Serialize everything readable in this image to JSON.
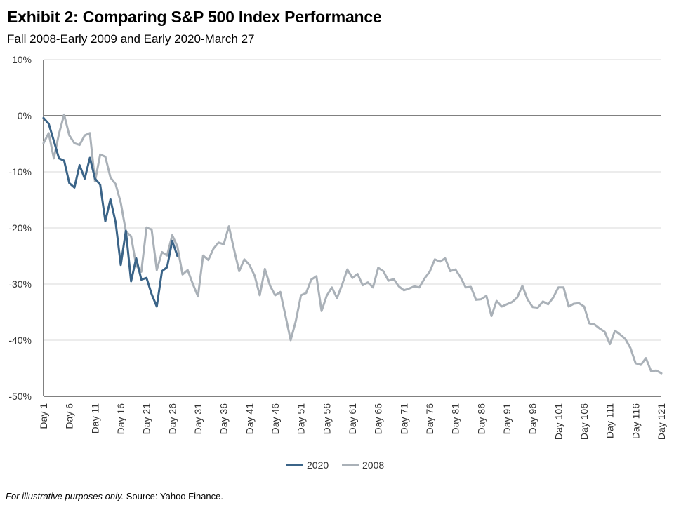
{
  "header": {
    "title": "Exhibit 2: Comparing S&P 500 Index Performance",
    "subtitle": "Fall 2008-Early 2009 and Early 2020-March 27"
  },
  "footnote": {
    "italic": "For illustrative purposes only.",
    "source": " Source: Yahoo Finance."
  },
  "colors": {
    "s2020": "#3b6488",
    "s2008": "#aab1b8",
    "grid": "#d9d9d9",
    "zero": "#000000",
    "axis": "#000000"
  },
  "chart_data": {
    "type": "line",
    "title": "Exhibit 2: Comparing S&P 500 Index Performance",
    "subtitle": "Fall 2008-Early 2009 and Early 2020-March 27",
    "xlabel": "",
    "ylabel": "",
    "ylim": [
      -50,
      10
    ],
    "yticks": [
      10,
      0,
      -10,
      -20,
      -30,
      -40,
      -50
    ],
    "ytick_labels": [
      "10%",
      "0%",
      "-10%",
      "-20%",
      "-30%",
      "-40%",
      "-50%"
    ],
    "xlim": [
      1,
      121
    ],
    "xticks": [
      1,
      6,
      11,
      16,
      21,
      26,
      31,
      36,
      41,
      46,
      51,
      56,
      61,
      66,
      71,
      76,
      81,
      86,
      91,
      96,
      101,
      106,
      111,
      116,
      121
    ],
    "xtick_labels": [
      "Day 1",
      "Day 6",
      "Day 11",
      "Day 16",
      "Day 21",
      "Day 26",
      "Day 31",
      "Day 36",
      "Day 41",
      "Day 46",
      "Day 51",
      "Day 56",
      "Day 61",
      "Day 66",
      "Day 71",
      "Day 76",
      "Day 81",
      "Day 86",
      "Day 91",
      "Day 96",
      "Day 101",
      "Day 106",
      "Day 111",
      "Day 116",
      "Day 121"
    ],
    "grid": true,
    "legend": "bottom-center",
    "series": [
      {
        "name": "2020",
        "color": "#3b6488",
        "values": [
          -0.4,
          -1.4,
          -4.5,
          -7.6,
          -8.0,
          -12.0,
          -12.8,
          -8.8,
          -11.2,
          -7.5,
          -11.2,
          -12.3,
          -18.8,
          -14.9,
          -19.0,
          -26.6,
          -20.5,
          -29.5,
          -25.4,
          -29.2,
          -28.9,
          -31.8,
          -34.0,
          -27.7,
          -27.0,
          -22.3,
          -25.0
        ]
      },
      {
        "name": "2008",
        "color": "#aab1b8",
        "values": [
          -4.9,
          -3.1,
          -7.6,
          -3.2,
          0.2,
          -3.5,
          -4.9,
          -5.2,
          -3.5,
          -3.1,
          -11.7,
          -6.9,
          -7.3,
          -11.0,
          -12.2,
          -15.5,
          -20.6,
          -21.5,
          -26.7,
          -27.8,
          -19.9,
          -20.3,
          -27.5,
          -24.3,
          -24.9,
          -21.3,
          -23.3,
          -28.3,
          -27.5,
          -30.0,
          -32.2,
          -24.9,
          -25.7,
          -23.7,
          -22.6,
          -22.9,
          -19.7,
          -23.8,
          -27.7,
          -25.6,
          -26.6,
          -28.5,
          -32.0,
          -27.3,
          -30.3,
          -32.0,
          -31.4,
          -35.7,
          -40.0,
          -36.6,
          -32.0,
          -31.6,
          -29.2,
          -28.6,
          -34.8,
          -32.1,
          -30.6,
          -32.5,
          -30.1,
          -27.4,
          -28.9,
          -28.2,
          -30.2,
          -29.7,
          -30.6,
          -27.1,
          -27.7,
          -29.4,
          -29.1,
          -30.4,
          -31.1,
          -30.8,
          -30.4,
          -30.6,
          -29.0,
          -27.8,
          -25.6,
          -26.0,
          -25.4,
          -27.7,
          -27.4,
          -28.8,
          -30.6,
          -30.5,
          -32.8,
          -32.7,
          -32.1,
          -35.7,
          -33.0,
          -34.0,
          -33.6,
          -33.2,
          -32.4,
          -30.3,
          -32.7,
          -34.1,
          -34.2,
          -33.1,
          -33.6,
          -32.4,
          -30.6,
          -30.6,
          -34.0,
          -33.5,
          -33.4,
          -34.0,
          -37.0,
          -37.2,
          -37.9,
          -38.5,
          -40.7,
          -38.3,
          -39.0,
          -39.8,
          -41.4,
          -44.1,
          -44.4,
          -43.2,
          -45.5,
          -45.4,
          -45.9
        ]
      }
    ]
  }
}
